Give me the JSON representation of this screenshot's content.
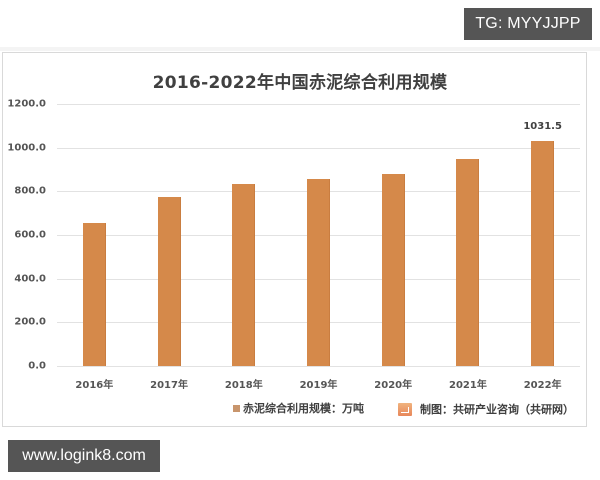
{
  "watermarks": {
    "top_right": "TG: MYYJJPP",
    "bottom_left": "www.logink8.com"
  },
  "chart_data": {
    "type": "bar",
    "title": "2016-2022年中国赤泥综合利用规模",
    "categories": [
      "2016年",
      "2017年",
      "2018年",
      "2019年",
      "2020年",
      "2021年",
      "2022年"
    ],
    "series": [
      {
        "name": "赤泥综合利用规模：万吨",
        "color": "#d5894a",
        "values": [
          656,
          773,
          834,
          855,
          878,
          948,
          1031.5
        ]
      }
    ],
    "xlabel": "",
    "ylabel": "",
    "ylim": [
      0,
      1200
    ],
    "yticks": [
      "0.0",
      "200.0",
      "400.0",
      "600.0",
      "800.0",
      "1000.0",
      "1200.0"
    ],
    "data_labels": [
      {
        "category": "2022年",
        "text": "1031.5"
      }
    ],
    "grid": true,
    "legend_position": "bottom",
    "legend_label": "赤泥综合利用规模：万吨",
    "source": "制图：共研产业咨询（共研网）"
  }
}
